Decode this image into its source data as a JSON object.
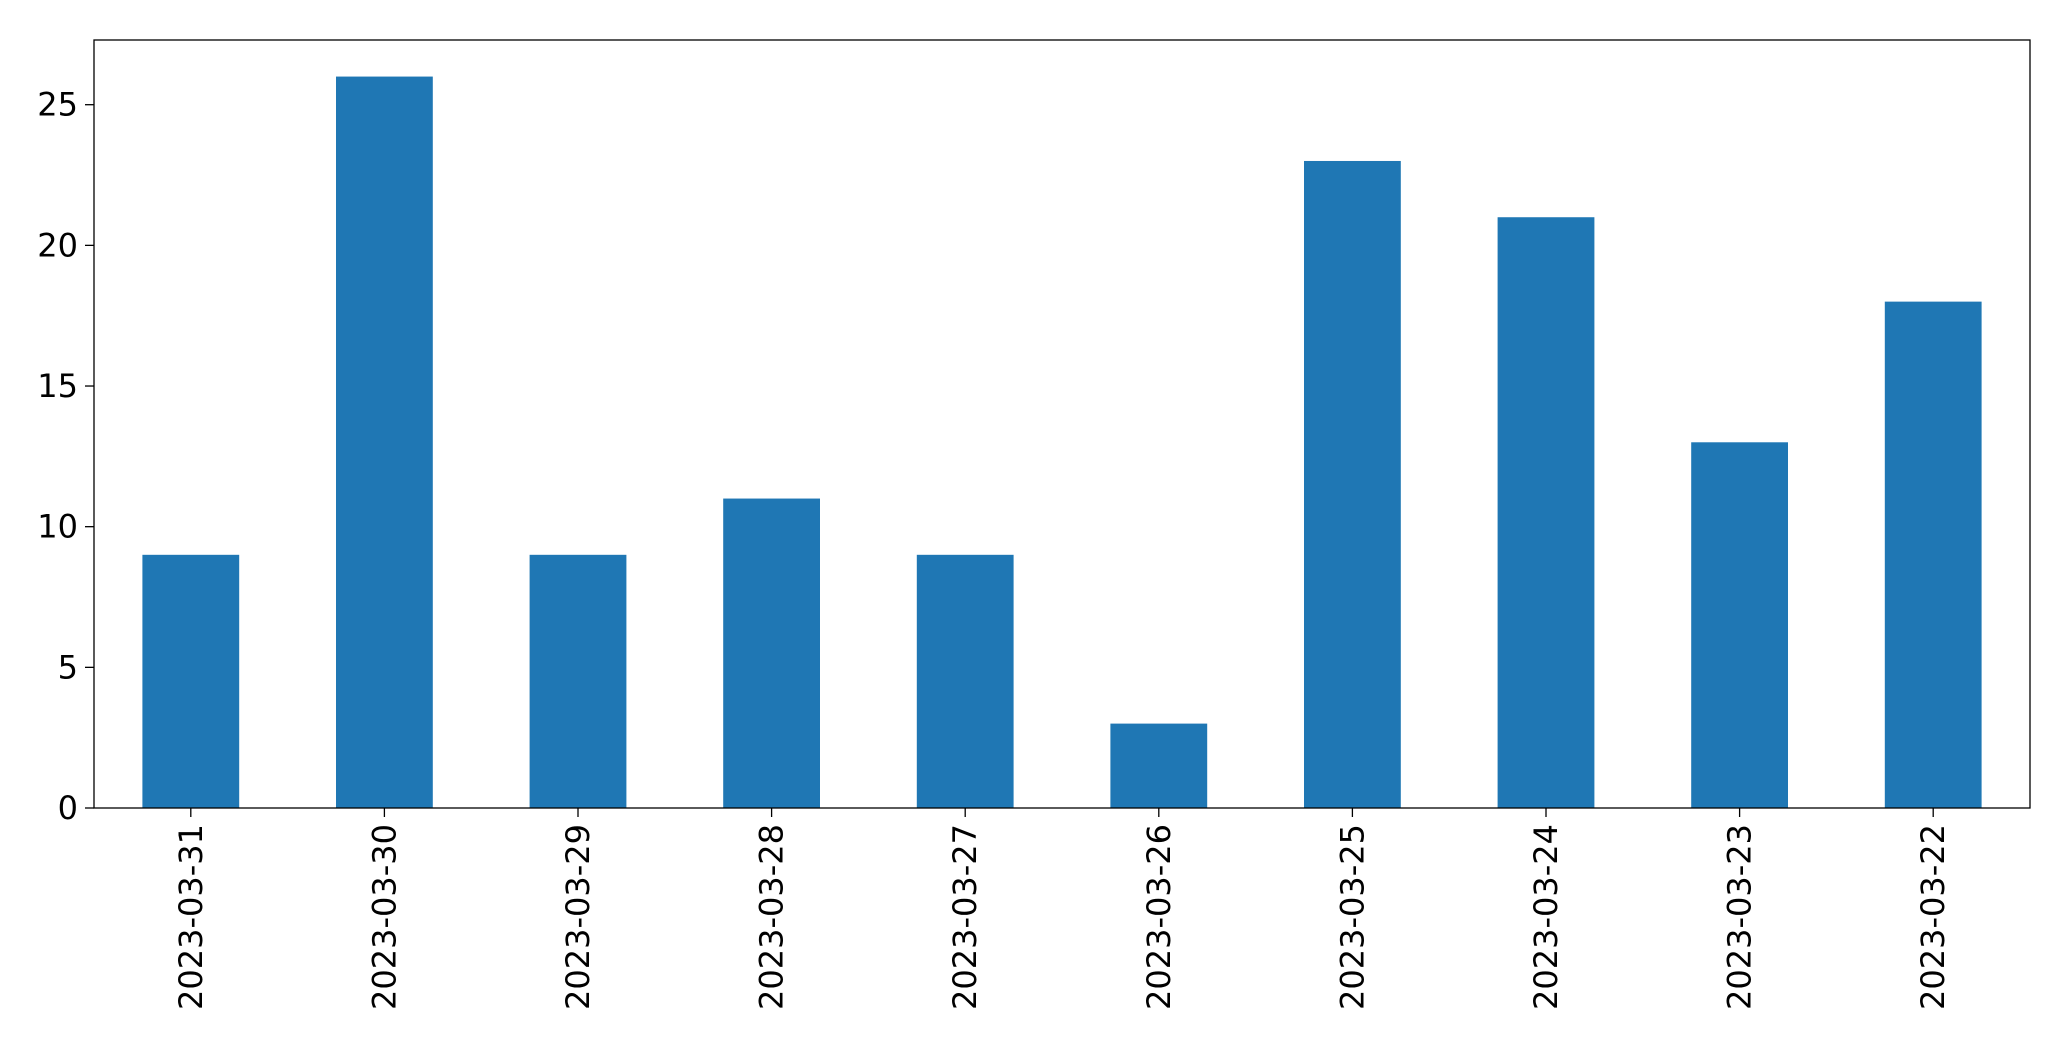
{
  "chart_data": {
    "type": "bar",
    "categories": [
      "2023-03-31",
      "2023-03-30",
      "2023-03-29",
      "2023-03-28",
      "2023-03-27",
      "2023-03-26",
      "2023-03-25",
      "2023-03-24",
      "2023-03-23",
      "2023-03-22"
    ],
    "values": [
      9,
      26,
      9,
      11,
      9,
      3,
      23,
      21,
      13,
      18
    ],
    "color": "#1f77b4",
    "ylim": [
      0,
      27.3
    ],
    "yticks": [
      0,
      5,
      10,
      15,
      20,
      25
    ],
    "grid": false
  }
}
